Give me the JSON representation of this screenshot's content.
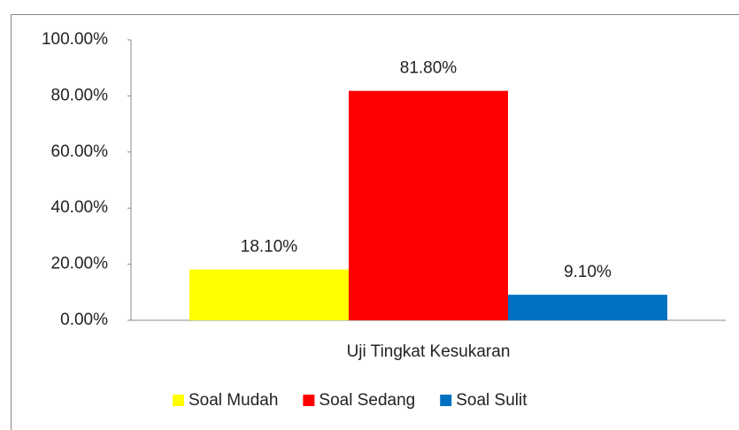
{
  "chart_data": {
    "type": "bar",
    "categories": [
      "Uji Tingkat Kesukaran"
    ],
    "series": [
      {
        "name": "Soal Mudah",
        "color": "#ffff00",
        "values": [
          18.1
        ],
        "value_labels": [
          "18.10%"
        ]
      },
      {
        "name": "Soal Sedang",
        "color": "#ff0000",
        "values": [
          81.8
        ],
        "value_labels": [
          "81.80%"
        ]
      },
      {
        "name": "Soal Sulit",
        "color": "#0070c0",
        "values": [
          9.1
        ],
        "value_labels": [
          "9.10%"
        ]
      }
    ],
    "ylim": [
      0,
      100
    ],
    "yticks": [
      {
        "value": 0,
        "label": "0.00%"
      },
      {
        "value": 20,
        "label": "20.00%"
      },
      {
        "value": 40,
        "label": "40.00%"
      },
      {
        "value": 60,
        "label": "60.00%"
      },
      {
        "value": 80,
        "label": "80.00%"
      },
      {
        "value": 100,
        "label": "100.00%"
      }
    ],
    "grid": false,
    "legend": "bottom"
  }
}
